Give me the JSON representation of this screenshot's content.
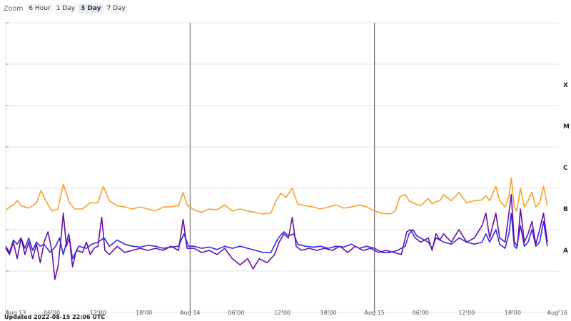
{
  "zoom": {
    "label": "Zoom",
    "buttons": [
      "6 Hour",
      "1 Day",
      "3 Day",
      "7 Day"
    ],
    "selected": "3 Day"
  },
  "updated_text": "Updated 2022-08-15 22:06 UTC",
  "colors": {
    "series_a": "#f7a02d",
    "series_b": "#2f2be8",
    "series_c": "#6a0fa3",
    "grid": "#e3e3e3",
    "day_line": "#555555",
    "axis": "#888888"
  },
  "chart_data": {
    "type": "line",
    "title": "",
    "xlabel": "",
    "ylabel": "",
    "x_range_hours": [
      0,
      72
    ],
    "x_ticks": [
      {
        "h": 0,
        "label": "Aug 13"
      },
      {
        "h": 6,
        "label": "06:00"
      },
      {
        "h": 12,
        "label": "12:00"
      },
      {
        "h": 18,
        "label": "18:00"
      },
      {
        "h": 24,
        "label": "Aug 14"
      },
      {
        "h": 30,
        "label": "06:00"
      },
      {
        "h": 36,
        "label": "12:00"
      },
      {
        "h": 42,
        "label": "18:00"
      },
      {
        "h": 48,
        "label": "Aug 15"
      },
      {
        "h": 54,
        "label": "06:00"
      },
      {
        "h": 60,
        "label": "12:00"
      },
      {
        "h": 66,
        "label": "18:00"
      },
      {
        "h": 72,
        "label": "Aug 16"
      }
    ],
    "day_lines_hours": [
      24,
      48
    ],
    "y_scale": "log",
    "y_range_log10": [
      -9,
      -2
    ],
    "y_class_labels": [
      {
        "label": "A",
        "log": -7.5
      },
      {
        "label": "B",
        "log": -6.5
      },
      {
        "label": "C",
        "log": -5.5
      },
      {
        "label": "M",
        "log": -4.5
      },
      {
        "label": "X",
        "log": -3.5
      }
    ],
    "series": [
      {
        "color": "#f7a02d",
        "points": [
          [
            0,
            -6.53
          ],
          [
            0.5,
            -6.45
          ],
          [
            1,
            -6.4
          ],
          [
            1.5,
            -6.3
          ],
          [
            2,
            -6.42
          ],
          [
            3,
            -6.48
          ],
          [
            4,
            -6.35
          ],
          [
            4.6,
            -6.05
          ],
          [
            5.2,
            -6.3
          ],
          [
            6,
            -6.55
          ],
          [
            6.8,
            -6.5
          ],
          [
            7.5,
            -5.9
          ],
          [
            8.3,
            -6.35
          ],
          [
            9,
            -6.5
          ],
          [
            10,
            -6.5
          ],
          [
            11,
            -6.35
          ],
          [
            12,
            -6.35
          ],
          [
            12.7,
            -5.95
          ],
          [
            13.5,
            -6.3
          ],
          [
            14.5,
            -6.42
          ],
          [
            15.5,
            -6.45
          ],
          [
            16.5,
            -6.5
          ],
          [
            17.5,
            -6.45
          ],
          [
            18.5,
            -6.5
          ],
          [
            19.5,
            -6.55
          ],
          [
            20.5,
            -6.45
          ],
          [
            21.5,
            -6.45
          ],
          [
            22.5,
            -6.42
          ],
          [
            23.1,
            -6.1
          ],
          [
            23.6,
            -6.4
          ],
          [
            24.5,
            -6.52
          ],
          [
            25.5,
            -6.58
          ],
          [
            26.5,
            -6.5
          ],
          [
            27.5,
            -6.52
          ],
          [
            28.5,
            -6.4
          ],
          [
            29.5,
            -6.55
          ],
          [
            30.5,
            -6.5
          ],
          [
            31.5,
            -6.55
          ],
          [
            32.5,
            -6.58
          ],
          [
            33.5,
            -6.62
          ],
          [
            34.5,
            -6.6
          ],
          [
            35.2,
            -6.3
          ],
          [
            35.8,
            -6.12
          ],
          [
            36.5,
            -6.22
          ],
          [
            37.3,
            -6.0
          ],
          [
            38,
            -6.38
          ],
          [
            39,
            -6.42
          ],
          [
            40,
            -6.45
          ],
          [
            41,
            -6.5
          ],
          [
            42,
            -6.45
          ],
          [
            43,
            -6.4
          ],
          [
            44,
            -6.48
          ],
          [
            45,
            -6.45
          ],
          [
            46,
            -6.4
          ],
          [
            47,
            -6.45
          ],
          [
            48,
            -6.55
          ],
          [
            49,
            -6.6
          ],
          [
            50,
            -6.62
          ],
          [
            50.7,
            -6.55
          ],
          [
            51.3,
            -6.2
          ],
          [
            52,
            -6.15
          ],
          [
            52.5,
            -6.3
          ],
          [
            53,
            -6.35
          ],
          [
            54,
            -6.42
          ],
          [
            55,
            -6.25
          ],
          [
            55.5,
            -6.38
          ],
          [
            56,
            -6.32
          ],
          [
            56.5,
            -6.3
          ],
          [
            57,
            -6.15
          ],
          [
            58,
            -6.3
          ],
          [
            59,
            -6.1
          ],
          [
            60,
            -6.35
          ],
          [
            61,
            -6.3
          ],
          [
            62,
            -6.28
          ],
          [
            62.5,
            -6.18
          ],
          [
            63,
            -6.3
          ],
          [
            63.8,
            -5.95
          ],
          [
            64.3,
            -6.3
          ],
          [
            65,
            -6.45
          ],
          [
            65.5,
            -6.2
          ],
          [
            65.8,
            -5.75
          ],
          [
            66.2,
            -6.45
          ],
          [
            66.5,
            -6.55
          ],
          [
            67,
            -6.0
          ],
          [
            67.5,
            -6.45
          ],
          [
            68,
            -6.3
          ],
          [
            68.5,
            -6.1
          ],
          [
            69,
            -6.45
          ],
          [
            69.5,
            -6.35
          ],
          [
            70,
            -5.95
          ],
          [
            70.5,
            -6.42
          ]
        ]
      },
      {
        "color": "#2f2be8",
        "points": [
          [
            0,
            -7.4
          ],
          [
            0.5,
            -7.55
          ],
          [
            1,
            -7.25
          ],
          [
            1.5,
            -7.35
          ],
          [
            2,
            -7.2
          ],
          [
            2.5,
            -7.45
          ],
          [
            3,
            -7.2
          ],
          [
            3.5,
            -7.5
          ],
          [
            4,
            -7.3
          ],
          [
            4.5,
            -7.4
          ],
          [
            5,
            -7.35
          ],
          [
            5.8,
            -7.55
          ],
          [
            6.5,
            -7.4
          ],
          [
            7,
            -7.2
          ],
          [
            7.5,
            -7.6
          ],
          [
            8.2,
            -7.1
          ],
          [
            8.7,
            -7.7
          ],
          [
            9.5,
            -7.4
          ],
          [
            10.5,
            -7.45
          ],
          [
            11.2,
            -7.35
          ],
          [
            12,
            -7.3
          ],
          [
            12.8,
            -7.2
          ],
          [
            13.5,
            -7.4
          ],
          [
            14.5,
            -7.25
          ],
          [
            15.5,
            -7.35
          ],
          [
            16.5,
            -7.4
          ],
          [
            17.5,
            -7.42
          ],
          [
            18.5,
            -7.38
          ],
          [
            19.5,
            -7.4
          ],
          [
            20.5,
            -7.45
          ],
          [
            21.5,
            -7.42
          ],
          [
            22.5,
            -7.4
          ],
          [
            23.2,
            -7.1
          ],
          [
            23.8,
            -7.4
          ],
          [
            24.5,
            -7.4
          ],
          [
            25.5,
            -7.45
          ],
          [
            26.5,
            -7.42
          ],
          [
            27.5,
            -7.48
          ],
          [
            28.5,
            -7.4
          ],
          [
            29.5,
            -7.45
          ],
          [
            30.5,
            -7.4
          ],
          [
            31.5,
            -7.45
          ],
          [
            32.5,
            -7.5
          ],
          [
            33.5,
            -7.55
          ],
          [
            34.5,
            -7.55
          ],
          [
            35.5,
            -7.2
          ],
          [
            36.2,
            -7.05
          ],
          [
            36.8,
            -7.15
          ],
          [
            37.5,
            -7.1
          ],
          [
            38,
            -7.35
          ],
          [
            39,
            -7.4
          ],
          [
            40,
            -7.42
          ],
          [
            41,
            -7.4
          ],
          [
            42,
            -7.45
          ],
          [
            43,
            -7.4
          ],
          [
            44,
            -7.42
          ],
          [
            45,
            -7.35
          ],
          [
            46,
            -7.45
          ],
          [
            47,
            -7.4
          ],
          [
            48,
            -7.45
          ],
          [
            49,
            -7.55
          ],
          [
            50,
            -7.55
          ],
          [
            51,
            -7.5
          ],
          [
            52,
            -7.4
          ],
          [
            52.5,
            -7.1
          ],
          [
            53,
            -7.0
          ],
          [
            53.5,
            -7.15
          ],
          [
            54,
            -7.2
          ],
          [
            55,
            -7.3
          ],
          [
            55.5,
            -7.45
          ],
          [
            56,
            -7.2
          ],
          [
            56.5,
            -7.25
          ],
          [
            57,
            -7.3
          ],
          [
            58,
            -7.35
          ],
          [
            59,
            -7.2
          ],
          [
            60,
            -7.3
          ],
          [
            61,
            -7.35
          ],
          [
            62,
            -7.3
          ],
          [
            62.5,
            -7.1
          ],
          [
            63,
            -7.3
          ],
          [
            63.8,
            -7.0
          ],
          [
            64.3,
            -7.35
          ],
          [
            65,
            -7.45
          ],
          [
            65.5,
            -7.1
          ],
          [
            65.8,
            -6.6
          ],
          [
            66.2,
            -7.4
          ],
          [
            66.5,
            -7.45
          ],
          [
            67,
            -6.9
          ],
          [
            67.5,
            -7.4
          ],
          [
            68,
            -7.3
          ],
          [
            68.5,
            -7.0
          ],
          [
            69,
            -7.4
          ],
          [
            69.5,
            -7.3
          ],
          [
            70,
            -6.8
          ],
          [
            70.5,
            -7.4
          ]
        ]
      },
      {
        "color": "#6a0fa3",
        "points": [
          [
            0,
            -7.45
          ],
          [
            0.5,
            -7.6
          ],
          [
            1,
            -7.3
          ],
          [
            1.5,
            -7.7
          ],
          [
            2,
            -7.2
          ],
          [
            2.5,
            -7.6
          ],
          [
            3,
            -7.3
          ],
          [
            3.5,
            -7.7
          ],
          [
            4,
            -7.35
          ],
          [
            4.5,
            -7.8
          ],
          [
            5,
            -7.3
          ],
          [
            5.5,
            -7.05
          ],
          [
            6,
            -7.5
          ],
          [
            6.4,
            -8.2
          ],
          [
            6.8,
            -7.9
          ],
          [
            7.2,
            -7.2
          ],
          [
            7.5,
            -6.6
          ],
          [
            7.9,
            -7.4
          ],
          [
            8.3,
            -7.2
          ],
          [
            8.7,
            -7.9
          ],
          [
            9.2,
            -7.5
          ],
          [
            10,
            -7.55
          ],
          [
            10.5,
            -7.3
          ],
          [
            11,
            -7.6
          ],
          [
            11.5,
            -7.45
          ],
          [
            12,
            -7.4
          ],
          [
            12.5,
            -6.7
          ],
          [
            12.9,
            -7.5
          ],
          [
            13.5,
            -7.6
          ],
          [
            14.5,
            -7.4
          ],
          [
            15.5,
            -7.55
          ],
          [
            16.5,
            -7.5
          ],
          [
            17.5,
            -7.45
          ],
          [
            18.5,
            -7.5
          ],
          [
            19.5,
            -7.45
          ],
          [
            20.5,
            -7.5
          ],
          [
            21.5,
            -7.4
          ],
          [
            22.5,
            -7.5
          ],
          [
            23.1,
            -6.75
          ],
          [
            23.6,
            -7.45
          ],
          [
            24.5,
            -7.45
          ],
          [
            25.5,
            -7.55
          ],
          [
            26.5,
            -7.5
          ],
          [
            27.5,
            -7.6
          ],
          [
            28.5,
            -7.45
          ],
          [
            29.5,
            -7.7
          ],
          [
            30.5,
            -7.85
          ],
          [
            31.5,
            -7.7
          ],
          [
            32.2,
            -7.95
          ],
          [
            33,
            -7.7
          ],
          [
            34,
            -7.8
          ],
          [
            35,
            -7.6
          ],
          [
            35.6,
            -7.3
          ],
          [
            36.2,
            -7.1
          ],
          [
            36.8,
            -7.2
          ],
          [
            37.3,
            -6.7
          ],
          [
            37.8,
            -7.4
          ],
          [
            38.5,
            -7.5
          ],
          [
            39.5,
            -7.45
          ],
          [
            40.5,
            -7.5
          ],
          [
            41.5,
            -7.45
          ],
          [
            42.5,
            -7.5
          ],
          [
            43.5,
            -7.4
          ],
          [
            44.5,
            -7.55
          ],
          [
            45.5,
            -7.4
          ],
          [
            46.5,
            -7.5
          ],
          [
            47.5,
            -7.45
          ],
          [
            48.5,
            -7.55
          ],
          [
            49.5,
            -7.5
          ],
          [
            50.5,
            -7.55
          ],
          [
            51.5,
            -7.6
          ],
          [
            52.2,
            -7.05
          ],
          [
            52.7,
            -7.0
          ],
          [
            53.3,
            -7.2
          ],
          [
            54,
            -7.3
          ],
          [
            55,
            -7.2
          ],
          [
            55.5,
            -7.5
          ],
          [
            56,
            -7.1
          ],
          [
            56.5,
            -7.25
          ],
          [
            57,
            -7.1
          ],
          [
            58,
            -7.3
          ],
          [
            59,
            -7.0
          ],
          [
            60,
            -7.3
          ],
          [
            61,
            -7.2
          ],
          [
            62,
            -6.9
          ],
          [
            62.5,
            -6.6
          ],
          [
            63,
            -7.2
          ],
          [
            63.8,
            -6.6
          ],
          [
            64.3,
            -7.2
          ],
          [
            65,
            -7.3
          ],
          [
            65.5,
            -6.6
          ],
          [
            65.8,
            -6.15
          ],
          [
            66.2,
            -7.3
          ],
          [
            66.6,
            -7.4
          ],
          [
            67,
            -6.5
          ],
          [
            67.5,
            -7.3
          ],
          [
            68,
            -7.1
          ],
          [
            68.5,
            -6.8
          ],
          [
            69,
            -7.35
          ],
          [
            69.5,
            -7.0
          ],
          [
            70,
            -6.6
          ],
          [
            70.5,
            -7.3
          ]
        ]
      }
    ]
  }
}
